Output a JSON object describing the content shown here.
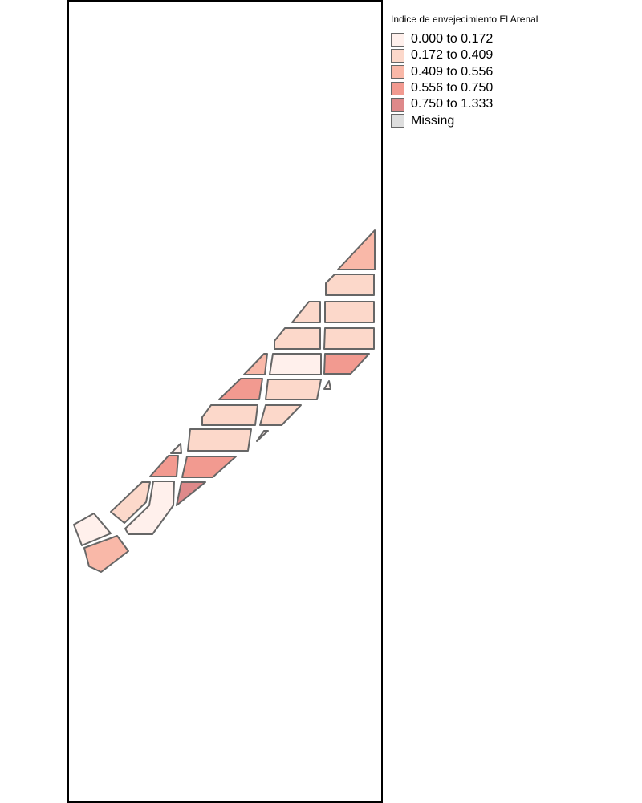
{
  "legend": {
    "title": "Indice de envejecimiento El Arenal",
    "classes": [
      {
        "label": "0.000 to 0.172",
        "color": "#fff0ec"
      },
      {
        "label": "0.172 to 0.409",
        "color": "#fcd8ca"
      },
      {
        "label": "0.409 to 0.556",
        "color": "#f9b8a8"
      },
      {
        "label": "0.556 to 0.750",
        "color": "#f29a90"
      },
      {
        "label": "0.750 to 1.333",
        "color": "#de898a"
      },
      {
        "label": "Missing",
        "color": "#dedede"
      }
    ]
  },
  "colors": {
    "border": "#666666",
    "frame": "#000000",
    "background": "#ffffff"
  }
}
